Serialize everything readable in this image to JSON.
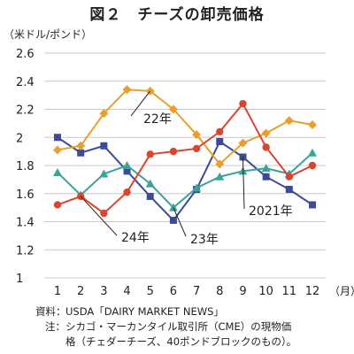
{
  "header": {
    "title": "図２　チーズの卸売価格",
    "unit": "（米ドル/ポンド）",
    "month_unit": "（月）"
  },
  "notes": {
    "source_label": "資料：",
    "source_text": "USDA「DAIRY MARKET NEWS」",
    "note_label": "注：",
    "note_line1": "シカゴ・マーカンタイル取引所（CME）の現物価",
    "note_line2": "格（チェダーチーズ、40ポンドブロックのもの）。"
  },
  "chart_data": {
    "type": "line",
    "categories": [
      "1",
      "2",
      "3",
      "4",
      "5",
      "6",
      "7",
      "8",
      "9",
      "10",
      "11",
      "12"
    ],
    "ylim": [
      1,
      2.6
    ],
    "yticks": [
      "1",
      "1.2",
      "1.4",
      "1.6",
      "1.8",
      "2",
      "2.2",
      "2.4",
      "2.6"
    ],
    "grid": true,
    "series": [
      {
        "name": "2021年",
        "color": "#3b4b9a",
        "marker": "square",
        "values": [
          2.0,
          1.89,
          1.94,
          1.76,
          1.58,
          1.41,
          1.63,
          1.97,
          1.86,
          1.72,
          1.63,
          1.52
        ]
      },
      {
        "name": "22年",
        "color": "#e8a02a",
        "marker": "diamond",
        "values": [
          1.91,
          1.94,
          2.17,
          2.34,
          2.33,
          2.2,
          2.02,
          1.81,
          1.96,
          2.03,
          2.12,
          2.09
        ]
      },
      {
        "name": "23年",
        "color": "#3aa39a",
        "marker": "triangle",
        "values": [
          1.75,
          1.59,
          1.74,
          1.8,
          1.67,
          1.5,
          1.64,
          1.72,
          1.76,
          1.78,
          1.74,
          1.89
        ]
      },
      {
        "name": "24年",
        "color": "#d9452f",
        "marker": "circle",
        "values": [
          1.52,
          1.58,
          1.46,
          1.61,
          1.88,
          1.9,
          1.92,
          2.04,
          2.24,
          1.93,
          1.72,
          1.8
        ]
      }
    ]
  }
}
